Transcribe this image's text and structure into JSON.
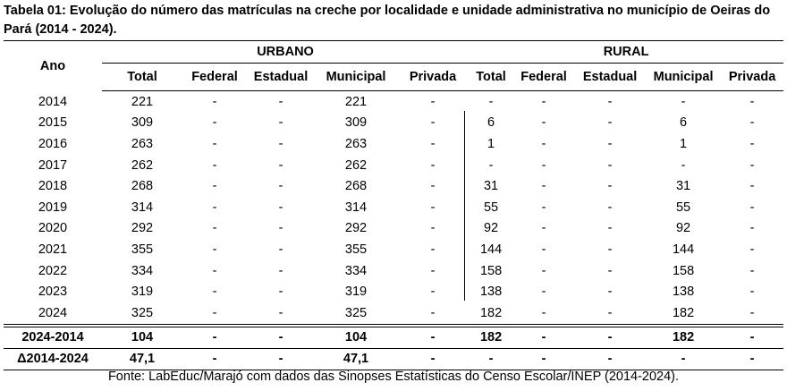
{
  "title": "Tabela 01: Evolução do número das matrículas na creche por localidade e unidade administrativa no município de Oeiras do Pará (2014 - 2024).",
  "table": {
    "year_header": "Ano",
    "groups": [
      "URBANO",
      "RURAL"
    ],
    "subheaders": [
      "Total",
      "Federal",
      "Estadual",
      "Municipal",
      "Privada",
      "Total",
      "Federal",
      "Estadual",
      "Municipal",
      "Privada"
    ],
    "rows": [
      [
        "2014",
        "221",
        "-",
        "-",
        "221",
        "-",
        "-",
        "-",
        "-",
        "-",
        "-"
      ],
      [
        "2015",
        "309",
        "-",
        "-",
        "309",
        "-",
        "6",
        "-",
        "-",
        "6",
        "-"
      ],
      [
        "2016",
        "263",
        "-",
        "-",
        "263",
        "-",
        "1",
        "-",
        "-",
        "1",
        "-"
      ],
      [
        "2017",
        "262",
        "-",
        "-",
        "262",
        "-",
        "-",
        "-",
        "-",
        "-",
        "-"
      ],
      [
        "2018",
        "268",
        "-",
        "-",
        "268",
        "-",
        "31",
        "-",
        "-",
        "31",
        "-"
      ],
      [
        "2019",
        "314",
        "-",
        "-",
        "314",
        "-",
        "55",
        "-",
        "-",
        "55",
        "-"
      ],
      [
        "2020",
        "292",
        "-",
        "-",
        "292",
        "-",
        "92",
        "-",
        "-",
        "92",
        "-"
      ],
      [
        "2021",
        "355",
        "-",
        "-",
        "355",
        "-",
        "144",
        "-",
        "-",
        "144",
        "-"
      ],
      [
        "2022",
        "334",
        "-",
        "-",
        "334",
        "-",
        "158",
        "-",
        "-",
        "158",
        "-"
      ],
      [
        "2023",
        "319",
        "-",
        "-",
        "319",
        "-",
        "138",
        "-",
        "-",
        "138",
        "-"
      ],
      [
        "2024",
        "325",
        "-",
        "-",
        "325",
        "-",
        "182",
        "-",
        "-",
        "182",
        "-"
      ]
    ],
    "summary_rows": [
      [
        "2024-2014",
        "104",
        "-",
        "-",
        "104",
        "-",
        "182",
        "-",
        "-",
        "182",
        "-"
      ],
      [
        "Δ2014-2024",
        "47,1",
        "-",
        "-",
        "47,1",
        "-",
        "-",
        "-",
        "-",
        "-",
        "-"
      ]
    ]
  },
  "source": "Fonte: LabEduc/Marajó com dados das Sinopses Estatísticas do Censo Escolar/INEP (2014-2024)."
}
